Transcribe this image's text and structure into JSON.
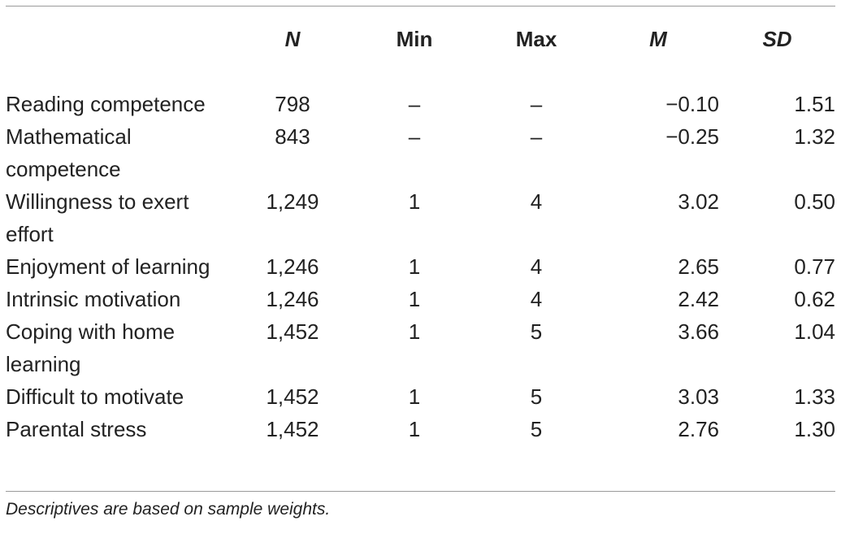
{
  "table": {
    "headers": {
      "label": "",
      "n": "N",
      "min": "Min",
      "max": "Max",
      "m": "M",
      "sd": "SD"
    },
    "rows": [
      {
        "label": "Reading competence",
        "n": "798",
        "min": "–",
        "max": "–",
        "m": "−0.10",
        "sd": "1.51"
      },
      {
        "label": "Mathematical competence",
        "n": "843",
        "min": "–",
        "max": "–",
        "m": "−0.25",
        "sd": "1.32"
      },
      {
        "label": "Willingness to exert effort",
        "n": "1,249",
        "min": "1",
        "max": "4",
        "m": "3.02",
        "sd": "0.50"
      },
      {
        "label": "Enjoyment of learning",
        "n": "1,246",
        "min": "1",
        "max": "4",
        "m": "2.65",
        "sd": "0.77"
      },
      {
        "label": "Intrinsic motivation",
        "n": "1,246",
        "min": "1",
        "max": "4",
        "m": "2.42",
        "sd": "0.62"
      },
      {
        "label": "Coping with home learning",
        "n": "1,452",
        "min": "1",
        "max": "5",
        "m": "3.66",
        "sd": "1.04"
      },
      {
        "label": "Difficult to motivate",
        "n": "1,452",
        "min": "1",
        "max": "5",
        "m": "3.03",
        "sd": "1.33"
      },
      {
        "label": "Parental stress",
        "n": "1,452",
        "min": "1",
        "max": "5",
        "m": "2.76",
        "sd": "1.30"
      }
    ]
  },
  "note": "Descriptives are based on sample weights."
}
